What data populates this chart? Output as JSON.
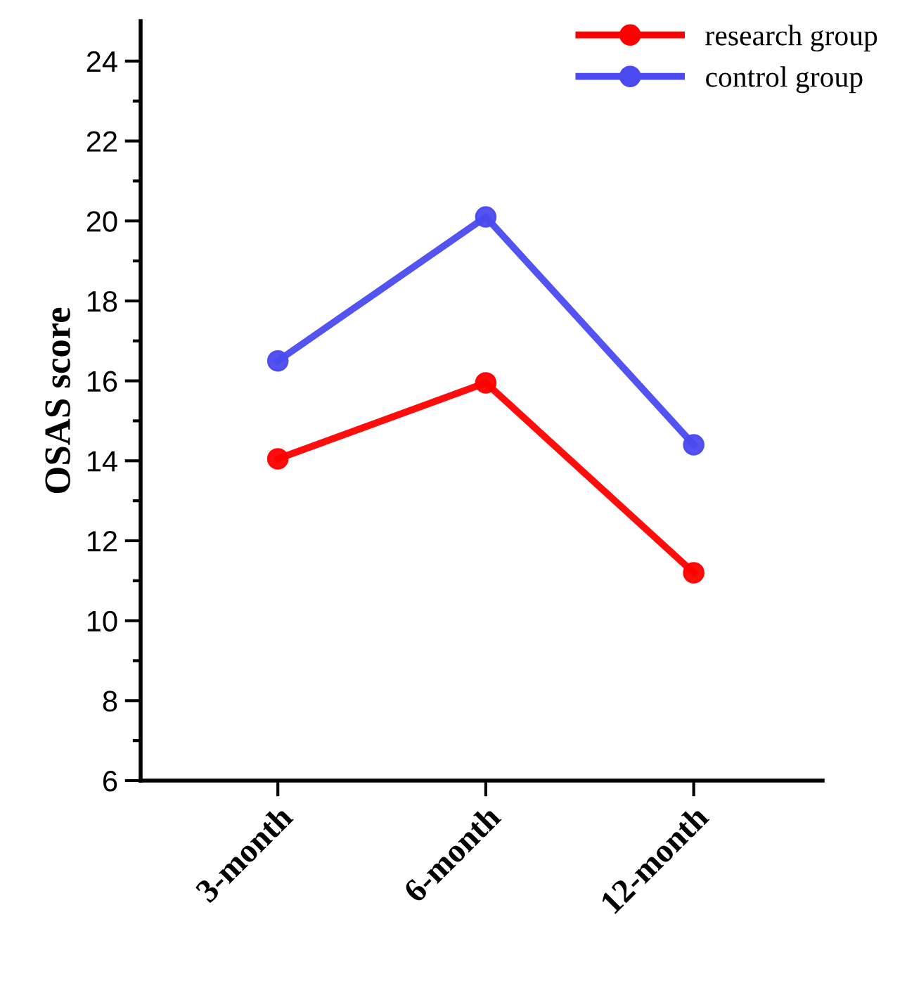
{
  "chart_data": {
    "type": "line",
    "ylabel": "OSAS score",
    "categories": [
      "3-month",
      "6-month",
      "12-month"
    ],
    "series": [
      {
        "name": "research group",
        "color": "#ff0000",
        "values": [
          14.05,
          15.95,
          11.2
        ]
      },
      {
        "name": "control group",
        "color": "#4a4af0",
        "values": [
          16.5,
          20.1,
          14.4
        ]
      }
    ],
    "ylim": [
      6,
      25
    ],
    "yticks": [
      6,
      {
        "value": 7,
        "label": null
      },
      8,
      {
        "value": 9,
        "label": null
      },
      10,
      {
        "value": 11,
        "label": null
      },
      12,
      {
        "value": 13,
        "label": null
      },
      14,
      {
        "value": 15,
        "label": null
      },
      16,
      {
        "value": 17,
        "label": null
      },
      18,
      {
        "value": 19,
        "label": null
      },
      20,
      {
        "value": 21,
        "label": null
      },
      22,
      {
        "value": 23,
        "label": null
      },
      24
    ],
    "marker": "circle",
    "line_style": "solid",
    "legend": "top right",
    "grid": false
  }
}
